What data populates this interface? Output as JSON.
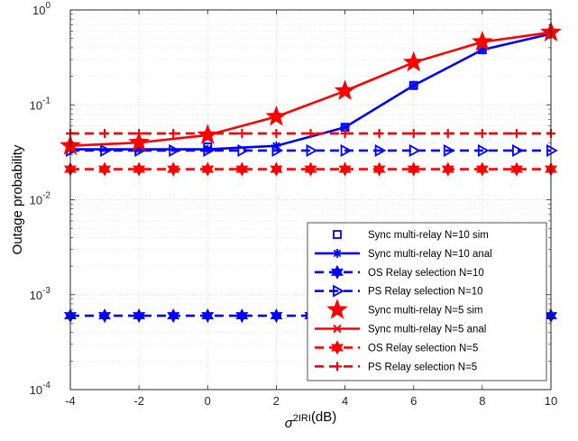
{
  "chart_data": {
    "type": "line",
    "title": "",
    "xlabel": {
      "symbol": "σ",
      "superscript": "2",
      "subscript": "IRI",
      "unit": "(dB)"
    },
    "ylabel": "Outage probability",
    "xlim": [
      -4,
      10
    ],
    "ylim": [
      0.0001,
      1
    ],
    "yscale": "log",
    "grid": true,
    "legend_position": "bottom-right",
    "xticks": [
      -4,
      -2,
      0,
      2,
      4,
      6,
      8,
      10
    ],
    "xtick_labels": [
      "-4",
      "-2",
      "0",
      "2",
      "4",
      "6",
      "8",
      "10"
    ],
    "yticks": [
      {
        "value": 0.0001,
        "base": "10",
        "exp": "-4"
      },
      {
        "value": 0.001,
        "base": "10",
        "exp": "-3"
      },
      {
        "value": 0.01,
        "base": "10",
        "exp": "-2"
      },
      {
        "value": 0.1,
        "base": "10",
        "exp": "-1"
      },
      {
        "value": 1,
        "base": "10",
        "exp": "0"
      }
    ],
    "series": [
      {
        "name": "Sync multi-relay N=10 sim",
        "color": "#0000ff",
        "line": "none",
        "marker": "square",
        "x": [
          0,
          4,
          6,
          8
        ],
        "y": [
          0.036,
          0.058,
          0.16,
          0.38
        ]
      },
      {
        "name": "Sync multi-relay N=10 anal",
        "color": "#0000ff",
        "line": "solid",
        "marker": "asterisk",
        "x": [
          -4,
          -2,
          0,
          2,
          4,
          6,
          8,
          10
        ],
        "y": [
          0.034,
          0.034,
          0.034,
          0.037,
          0.058,
          0.16,
          0.38,
          0.56
        ]
      },
      {
        "name": "OS Relay selection N=10",
        "color": "#0000ff",
        "line": "dashed",
        "marker": "hexagram",
        "x": [
          -4,
          -3,
          -2,
          -1,
          0,
          1,
          2,
          3,
          4,
          5,
          6,
          7,
          8,
          9,
          10
        ],
        "y": [
          0.0006,
          0.0006,
          0.0006,
          0.0006,
          0.0006,
          0.0006,
          0.0006,
          0.0006,
          0.0006,
          0.0006,
          0.0006,
          0.0006,
          0.0006,
          0.0006,
          0.0006
        ]
      },
      {
        "name": "PS Relay selection N=10",
        "color": "#0000ff",
        "line": "dashed",
        "marker": "triangle-right",
        "x": [
          -4,
          -3,
          -2,
          -1,
          0,
          1,
          2,
          3,
          4,
          5,
          6,
          7,
          8,
          9,
          10
        ],
        "y": [
          0.033,
          0.033,
          0.033,
          0.033,
          0.033,
          0.033,
          0.033,
          0.033,
          0.033,
          0.033,
          0.033,
          0.033,
          0.033,
          0.033,
          0.033
        ]
      },
      {
        "name": "Sync multi-relay N=5 sim",
        "color": "#ff0000",
        "line": "none",
        "marker": "pentagram",
        "x": [
          -4,
          -2,
          0,
          2,
          4,
          6,
          8,
          10
        ],
        "y": [
          0.037,
          0.04,
          0.048,
          0.075,
          0.14,
          0.28,
          0.46,
          0.58
        ]
      },
      {
        "name": "Sync multi-relay N=5 anal",
        "color": "#ff0000",
        "line": "solid",
        "marker": "x",
        "x": [
          -4,
          -2,
          0,
          2,
          4,
          6,
          8,
          10
        ],
        "y": [
          0.037,
          0.04,
          0.048,
          0.075,
          0.14,
          0.28,
          0.46,
          0.58
        ]
      },
      {
        "name": "OS Relay selection N=5",
        "color": "#ff0000",
        "line": "dashed",
        "marker": "hexagram",
        "x": [
          -4,
          -3,
          -2,
          -1,
          0,
          1,
          2,
          3,
          4,
          5,
          6,
          7,
          8,
          9,
          10
        ],
        "y": [
          0.021,
          0.021,
          0.021,
          0.021,
          0.021,
          0.021,
          0.021,
          0.021,
          0.021,
          0.021,
          0.021,
          0.021,
          0.021,
          0.021,
          0.021
        ]
      },
      {
        "name": "PS Relay selection N=5",
        "color": "#ff0000",
        "line": "dashed",
        "marker": "plus",
        "x": [
          -4,
          -3,
          -2,
          -1,
          0,
          1,
          2,
          3,
          4,
          5,
          6,
          7,
          8,
          9,
          10
        ],
        "y": [
          0.05,
          0.05,
          0.05,
          0.05,
          0.05,
          0.05,
          0.05,
          0.05,
          0.05,
          0.05,
          0.05,
          0.05,
          0.05,
          0.05,
          0.05
        ]
      }
    ]
  }
}
